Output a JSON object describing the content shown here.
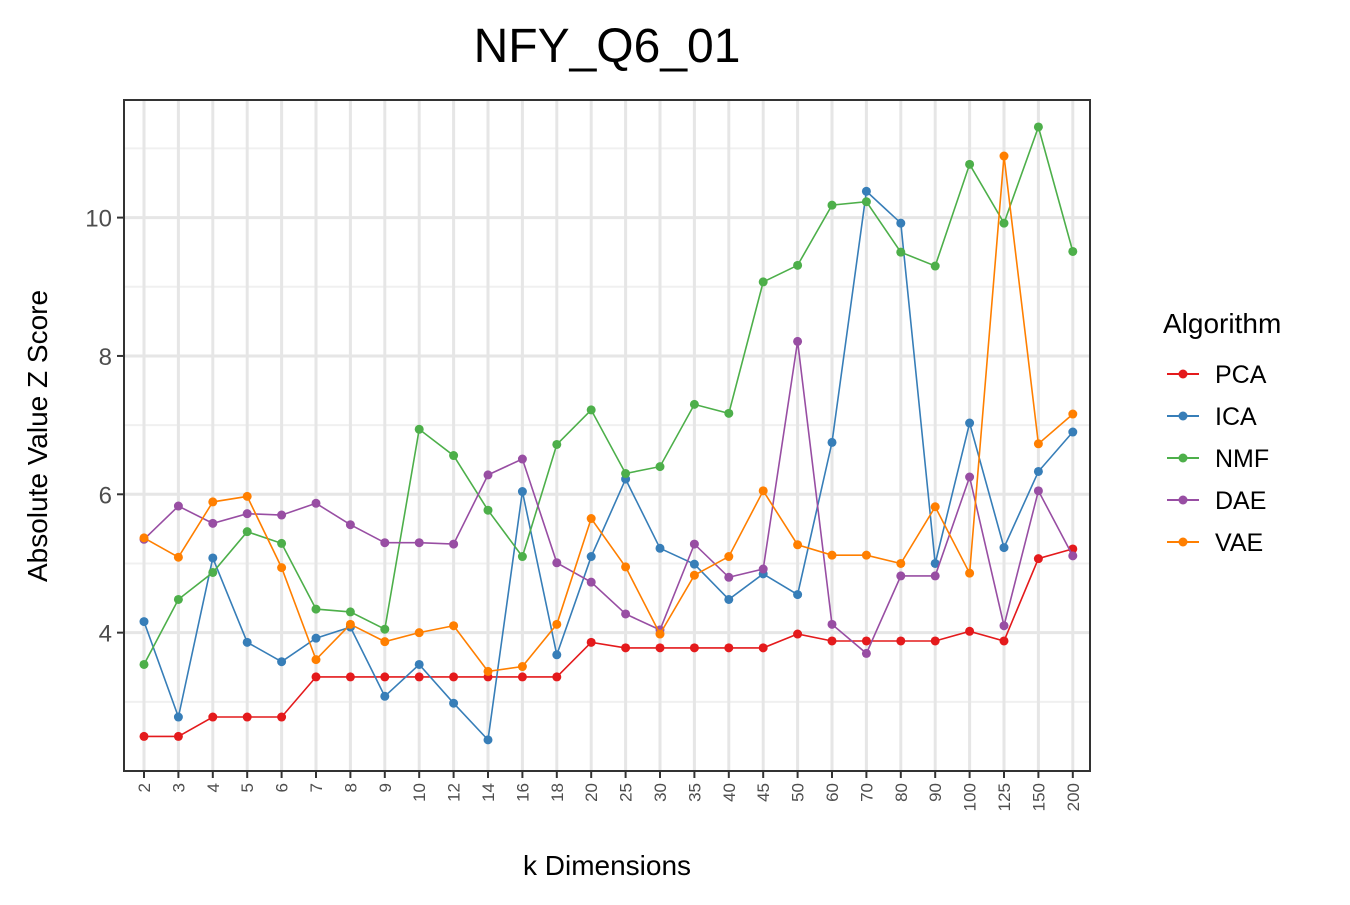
{
  "chart_data": {
    "type": "line",
    "title": "NFY_Q6_01",
    "xlabel": "k Dimensions",
    "ylabel": "Absolute Value Z Score",
    "categories": [
      "2",
      "3",
      "4",
      "5",
      "6",
      "7",
      "8",
      "9",
      "10",
      "12",
      "14",
      "16",
      "18",
      "20",
      "25",
      "30",
      "35",
      "40",
      "45",
      "50",
      "60",
      "70",
      "80",
      "90",
      "100",
      "125",
      "150",
      "200"
    ],
    "y_ticks": [
      4,
      6,
      8,
      10
    ],
    "ylim": [
      2.0,
      11.7
    ],
    "grid": true,
    "legend": {
      "title": "Algorithm",
      "position": "right"
    },
    "series": [
      {
        "name": "PCA",
        "color": "#e41a1c",
        "values": [
          2.5,
          2.5,
          2.78,
          2.78,
          2.78,
          3.36,
          3.36,
          3.36,
          3.36,
          3.36,
          3.36,
          3.36,
          3.36,
          3.86,
          3.78,
          3.78,
          3.78,
          3.78,
          3.78,
          3.98,
          3.88,
          3.88,
          3.88,
          3.88,
          4.02,
          3.88,
          5.07,
          5.21
        ]
      },
      {
        "name": "ICA",
        "color": "#377eb8",
        "values": [
          4.16,
          2.78,
          5.08,
          3.86,
          3.58,
          3.92,
          4.08,
          3.08,
          3.54,
          2.98,
          2.45,
          6.04,
          3.68,
          5.1,
          6.22,
          5.22,
          4.99,
          4.48,
          4.85,
          4.55,
          6.75,
          10.38,
          9.92,
          5.0,
          7.03,
          5.23,
          6.33,
          6.9
        ]
      },
      {
        "name": "NMF",
        "color": "#4daf4a",
        "values": [
          3.54,
          4.48,
          4.87,
          5.46,
          5.29,
          4.34,
          4.3,
          4.05,
          6.94,
          6.56,
          5.77,
          5.1,
          6.72,
          7.22,
          6.3,
          6.4,
          7.3,
          7.17,
          9.07,
          9.31,
          10.18,
          10.23,
          9.5,
          9.3,
          10.77,
          9.92,
          11.31,
          9.51
        ]
      },
      {
        "name": "DAE",
        "color": "#984ea3",
        "values": [
          5.35,
          5.83,
          5.58,
          5.72,
          5.7,
          5.87,
          5.56,
          5.3,
          5.3,
          5.28,
          6.28,
          6.51,
          5.01,
          4.73,
          4.27,
          4.04,
          5.28,
          4.8,
          4.92,
          8.21,
          4.12,
          3.7,
          4.82,
          4.82,
          6.25,
          4.1,
          6.05,
          5.11
        ]
      },
      {
        "name": "VAE",
        "color": "#ff7f00",
        "values": [
          5.37,
          5.09,
          5.89,
          5.97,
          4.94,
          3.61,
          4.12,
          3.87,
          4.0,
          4.1,
          3.44,
          3.51,
          4.12,
          5.65,
          4.95,
          3.98,
          4.83,
          5.1,
          6.05,
          5.27,
          5.12,
          5.12,
          5.0,
          5.82,
          4.86,
          10.89,
          6.73,
          7.16
        ]
      }
    ]
  }
}
